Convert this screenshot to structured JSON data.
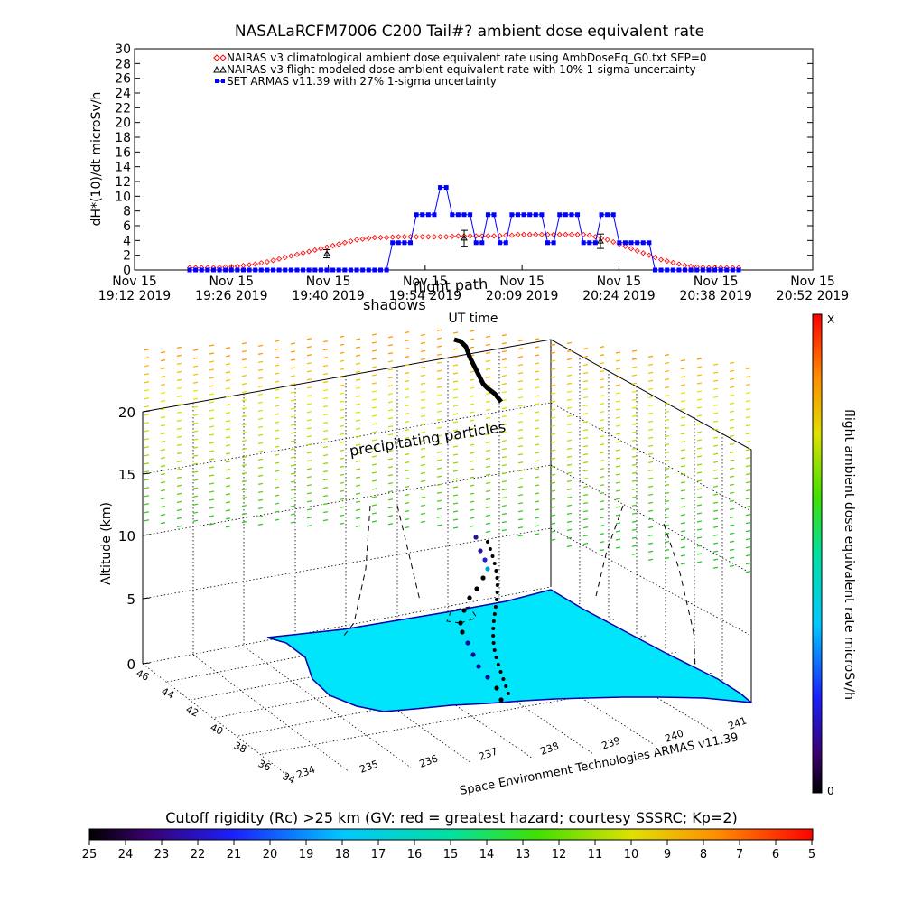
{
  "chart_data": [
    {
      "type": "line",
      "title": "NASALaRCFM7006  C200 Tail#? ambient dose equivalent rate",
      "ylabel": "dH*(10)/dt microSv/h",
      "xlabel": "UT time",
      "ylim": [
        0,
        30
      ],
      "yticks": [
        0,
        2,
        4,
        6,
        8,
        10,
        12,
        14,
        16,
        18,
        20,
        22,
        24,
        26,
        28,
        30
      ],
      "xlim_min": [
        0,
        140
      ],
      "xticks": [
        {
          "m": 0,
          "l1": "Nov 15",
          "l2": "19:12 2019"
        },
        {
          "m": 14,
          "l1": "Nov 15",
          "l2": "19:26 2019"
        },
        {
          "m": 28,
          "l1": "Nov 15",
          "l2": "19:40 2019"
        },
        {
          "m": 42,
          "l1": "Nov 15",
          "l2": "19:54 2019"
        },
        {
          "m": 56,
          "l1": "Nov 15",
          "l2": "20:09 2019"
        },
        {
          "m": 70,
          "l1": "Nov 15",
          "l2": "20:24 2019"
        },
        {
          "m": 84,
          "l1": "Nov 15",
          "l2": "20:38 2019"
        },
        {
          "m": 98,
          "l1": "Nov 15",
          "l2": "20:52 2019"
        }
      ],
      "legend": [
        {
          "name": "NAIRAS v3 climatological ambient dose equivalent rate using AmbDoseEq_G0.txt SEP=0",
          "color": "#ff0000",
          "marker": "diamond"
        },
        {
          "name": "NAIRAS v3 flight modeled dose ambient equivalent rate with 10% 1-sigma uncertainty",
          "color": "#000000",
          "marker": "triangle"
        },
        {
          "name": "SET ARMAS v11.39 with 27% 1-sigma uncertainty",
          "color": "#0000ff",
          "marker": "square"
        }
      ],
      "series": [
        {
          "name": "NAIRAS v3 climatological ambient dose equivalent rate using AmbDoseEq_G0.txt SEP=0",
          "color": "#ff0000",
          "x_start": 12,
          "x_step": 1,
          "values": [
            0.3,
            0.3,
            0.3,
            0.3,
            0.3,
            0.35,
            0.4,
            0.45,
            0.5,
            0.6,
            0.7,
            0.8,
            0.95,
            1.1,
            1.3,
            1.5,
            1.7,
            1.9,
            2.1,
            2.3,
            2.5,
            2.7,
            2.9,
            3.1,
            3.3,
            3.5,
            3.7,
            3.9,
            4.1,
            4.2,
            4.3,
            4.4,
            4.4,
            4.4,
            4.45,
            4.5,
            4.5,
            4.5,
            4.5,
            4.5,
            4.5,
            4.5,
            4.5,
            4.5,
            4.55,
            4.6,
            4.6,
            4.6,
            4.6,
            4.6,
            4.6,
            4.6,
            4.65,
            4.7,
            4.7,
            4.8,
            4.8,
            4.8,
            4.8,
            4.8,
            4.8,
            4.8,
            4.8,
            4.8,
            4.8,
            4.8,
            4.8,
            4.7,
            4.5,
            4.3,
            4.1,
            3.8,
            3.5,
            3.2,
            2.9,
            2.6,
            2.3,
            2.0,
            1.7,
            1.4,
            1.2,
            1.0,
            0.8,
            0.6,
            0.5,
            0.4,
            0.35,
            0.3,
            0.3,
            0.3,
            0.3,
            0.3,
            0.3
          ]
        },
        {
          "name": "SET ARMAS v11.39 with 27% 1-sigma uncertainty",
          "color": "#0000ff",
          "x": [
            12,
            13,
            14,
            15,
            16,
            17,
            18,
            19,
            20,
            21,
            22,
            23,
            24,
            25,
            26,
            27,
            28,
            29,
            30,
            31,
            32,
            33,
            34,
            35,
            36,
            37,
            38,
            39,
            40,
            41,
            42,
            43,
            44,
            45,
            46,
            47,
            48,
            49,
            50,
            51,
            52,
            53,
            54,
            55,
            56,
            57,
            58,
            59,
            60,
            61,
            62,
            63,
            64,
            65,
            66,
            67,
            68,
            69,
            70,
            71,
            72,
            73,
            74,
            75,
            76,
            77,
            78,
            79,
            80,
            81,
            82,
            83,
            84,
            85,
            86,
            87,
            88,
            89,
            90,
            91,
            92,
            93,
            94,
            95,
            96,
            97,
            98,
            99,
            100,
            101,
            102,
            103,
            104
          ],
          "values": [
            0,
            0,
            0,
            0,
            0,
            0,
            0,
            0,
            0,
            0,
            0,
            0,
            0,
            0,
            0,
            0,
            0,
            0,
            0,
            0,
            0,
            0,
            0,
            0,
            0,
            0,
            0,
            0,
            0,
            0,
            0,
            0,
            0,
            0,
            3.7,
            3.7,
            3.7,
            3.7,
            7.5,
            7.5,
            7.5,
            7.5,
            11.2,
            11.2,
            7.5,
            7.5,
            7.5,
            7.5,
            3.7,
            3.7,
            7.5,
            7.5,
            3.7,
            3.7,
            7.5,
            7.5,
            7.5,
            7.5,
            7.5,
            7.5,
            3.7,
            3.7,
            7.5,
            7.5,
            7.5,
            7.5,
            3.7,
            3.7,
            3.7,
            7.5,
            7.5,
            7.5,
            3.7,
            3.7,
            3.7,
            3.7,
            3.7,
            3.7,
            0,
            0,
            0,
            0,
            0,
            0,
            0,
            0,
            0,
            0,
            0,
            0,
            0,
            0,
            0
          ]
        },
        {
          "name": "NAIRAS v3 flight modeled dose ambient equivalent rate with 10% 1-sigma uncertainty",
          "color": "#000000",
          "x": [
            33,
            58,
            86
          ],
          "values": [
            2.2,
            4.3,
            3.9
          ]
        }
      ]
    },
    {
      "type": "scatter",
      "ylabel": "Altitude (km)",
      "zticks": [
        "0",
        "5",
        "10",
        "15",
        "20"
      ],
      "lat_ticks": [
        "46",
        "44",
        "42",
        "40",
        "38",
        "36",
        "34"
      ],
      "lon_ticks": [
        "234",
        "235",
        "236",
        "237",
        "238",
        "239",
        "240",
        "241"
      ],
      "annotations": [
        "shadows",
        "flight path",
        "precipitating particles"
      ],
      "credit": "Space Environment Technologies ARMAS v11.39",
      "colorbar_label": "flight ambient dose equivalent rate microSv/h",
      "colorbar_max": "X",
      "colorbar_min": "0"
    },
    {
      "type": "colorbar",
      "title": "Cutoff rigidity (Rc) >25 km (GV: red = greatest hazard; courtesy SSSRC; Kp=2)",
      "ticks": [
        "25",
        "24",
        "23",
        "22",
        "21",
        "20",
        "19",
        "18",
        "17",
        "16",
        "15",
        "14",
        "13",
        "12",
        "11",
        "10",
        "9",
        "8",
        "7",
        "6",
        "5"
      ]
    }
  ]
}
